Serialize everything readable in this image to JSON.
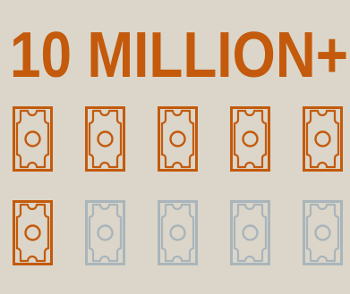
{
  "headline": {
    "text": "10 MILLION+",
    "color": "#c45a0c"
  },
  "icon_array": {
    "icon": "banknote-icon",
    "total": 10,
    "highlighted": 6,
    "colors": {
      "highlighted": "#c45a0c",
      "muted": "#a9b5bb"
    }
  }
}
